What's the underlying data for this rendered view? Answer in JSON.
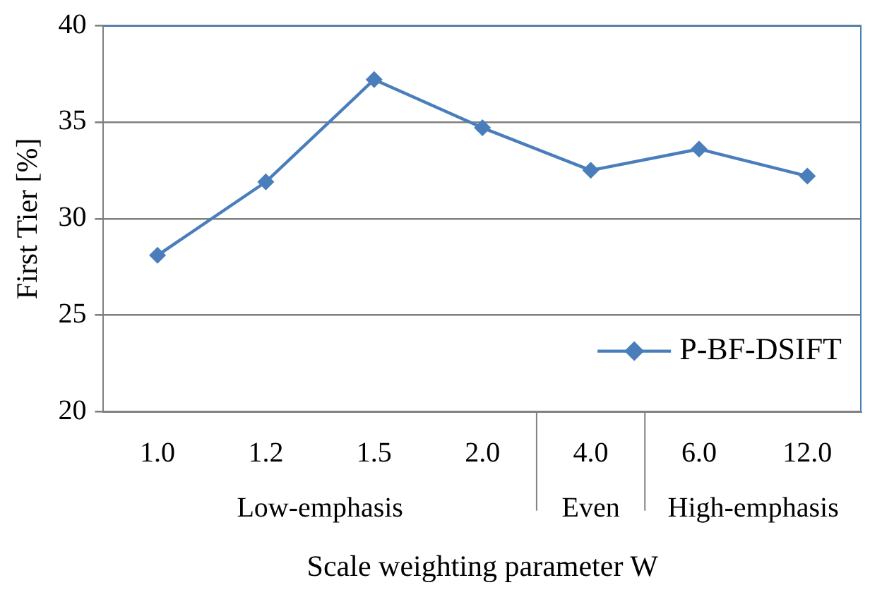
{
  "chart_data": {
    "type": "line",
    "xlabel": "Scale weighting parameter W",
    "ylabel": "First Tier [%]",
    "categories": [
      "1.0",
      "1.2",
      "1.5",
      "2.0",
      "4.0",
      "6.0",
      "12.0"
    ],
    "series": [
      {
        "name": "P-BF-DSIFT",
        "color": "#4a7ebb",
        "values": [
          28.1,
          31.9,
          37.2,
          34.7,
          32.5,
          33.6,
          32.2
        ]
      }
    ],
    "ylim": [
      20,
      40
    ],
    "yticks": [
      20,
      25,
      30,
      35,
      40
    ],
    "grid": "y",
    "legend": "bottom right",
    "marker": "diamond",
    "line_style": "solid",
    "annotations": [
      "Low-emphasis",
      "Even",
      "High-emphasis"
    ]
  }
}
